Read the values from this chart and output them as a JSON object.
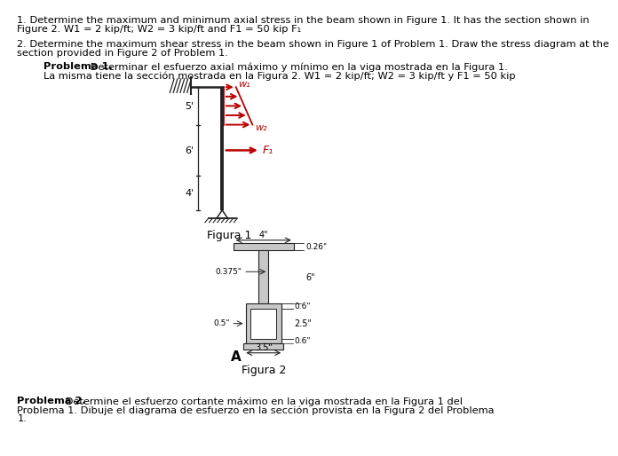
{
  "bg_color": "#ffffff",
  "text_color": "#000000",
  "red_color": "#bb0000",
  "beam_color": "#222222",
  "section_fill": "#c8c8c8",
  "line1": "1. Determine the maximum and minimum axial stress in the beam shown in Figure 1. It has the section shown in",
  "line2": "Figure 2. W1 = 2 kip/ft; W2 = 3 kip/ft and F1 = 50 kip F₁",
  "line3": "2. Determine the maximum shear stress in the beam shown in Figure 1 of Problem 1. Draw the stress diagram at the",
  "line4": "section provided in Figure 2 of Problem 1.",
  "prob1_bold": "Problema 1.",
  "prob1_text": " Determinar el esfuerzo axial máximo y mínimo en la viga mostrada en la Figura 1.",
  "prob1_line2": "La misma tiene la sección mostrada en la Figura 2. W1 = 2 kip/ft; W2 = 3 kip/ft y F1 = 50 kip",
  "figura1_label": "Figura 1",
  "figura2_label": "Figura 2",
  "prob2_bold": "Problema 2.",
  "prob2_text": " Determine el esfuerzo cortante máximo en la viga mostrada en la Figura 1 del",
  "prob2_line2": "Problema 1. Dibuje el diagrama de esfuerzo en la sección provista en la Figura 2 del Problema",
  "prob2_line3": "1."
}
